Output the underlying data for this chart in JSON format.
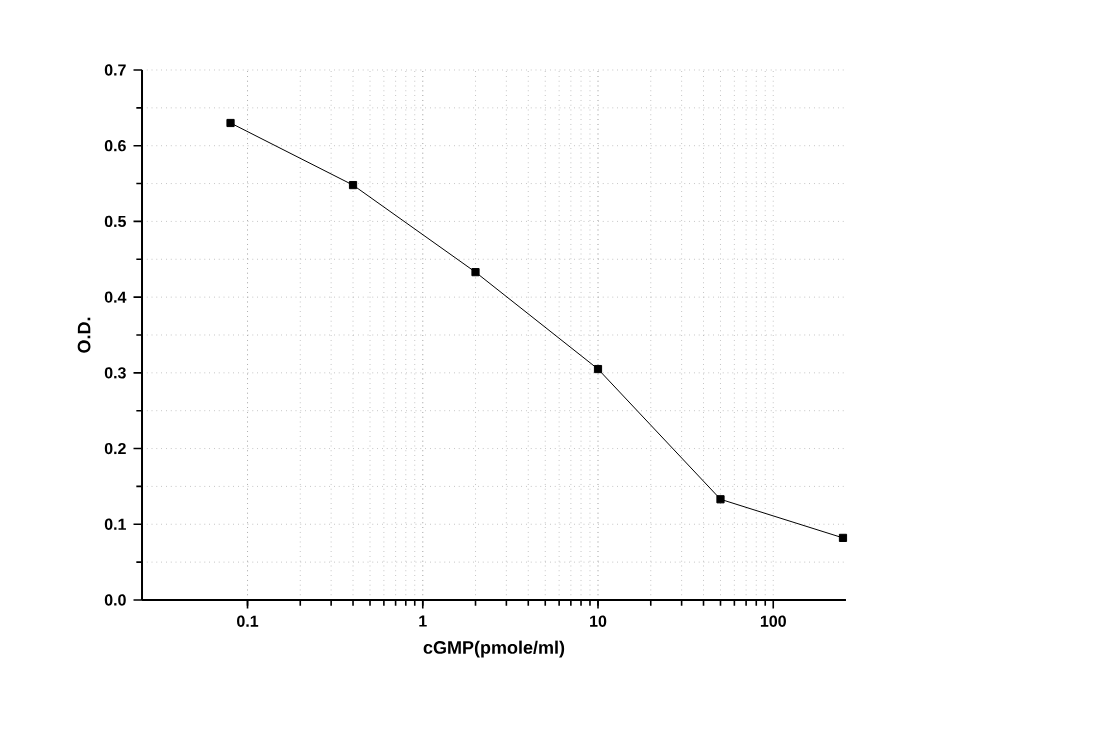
{
  "chart_data": {
    "type": "line",
    "xlabel": "cGMP(pmole/ml)",
    "ylabel": "O.D.",
    "log": "x",
    "x": [
      0.08,
      0.4,
      2,
      10,
      50,
      250
    ],
    "series": [
      {
        "color": "#000000",
        "values": [
          0.63,
          0.548,
          0.433,
          0.305,
          0.133,
          0.082
        ]
      }
    ],
    "xlim": [
      0.025,
      260
    ],
    "xticks": [
      0.1,
      1,
      10,
      100
    ],
    "ylim": [
      0,
      0.7
    ],
    "yticks": [
      {
        "value": 0,
        "label": "0.0"
      },
      0.1,
      0.2,
      0.3,
      0.4,
      0.5,
      0.6,
      0.7
    ],
    "grid": true,
    "marker": "square",
    "line_style": "solid"
  }
}
